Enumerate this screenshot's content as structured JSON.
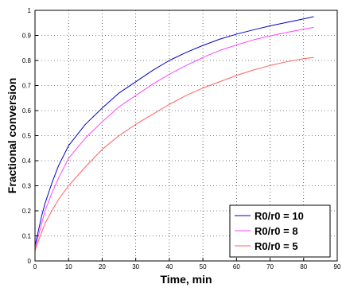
{
  "chart_data": {
    "type": "line",
    "title": "",
    "xlabel": "Time, min",
    "ylabel": "Fractional conversion",
    "xlim": [
      0,
      90
    ],
    "ylim": [
      0,
      1
    ],
    "xticks": [
      "0",
      "10",
      "20",
      "30",
      "40",
      "50",
      "60",
      "70",
      "80",
      "90"
    ],
    "yticks": [
      "0",
      "0.1",
      "0.2",
      "0.3",
      "0.4",
      "0.5",
      "0.6",
      "0.7",
      "0.8",
      "0.9",
      "1"
    ],
    "grid": true,
    "legend_position": "bottom-right",
    "x": [
      0,
      1,
      2,
      3,
      5,
      7,
      10,
      15,
      20,
      25,
      30,
      35,
      40,
      45,
      50,
      55,
      60,
      65,
      70,
      75,
      80,
      83
    ],
    "series": [
      {
        "name": "R0/r0 = 10",
        "color": "#0000cc",
        "values": [
          0.06,
          0.12,
          0.18,
          0.23,
          0.31,
          0.38,
          0.46,
          0.545,
          0.61,
          0.67,
          0.715,
          0.76,
          0.8,
          0.832,
          0.86,
          0.885,
          0.905,
          0.922,
          0.938,
          0.952,
          0.966,
          0.975
        ]
      },
      {
        "name": "R0/r0 = 8",
        "color": "#ff44ff",
        "values": [
          0.05,
          0.1,
          0.15,
          0.2,
          0.27,
          0.33,
          0.41,
          0.49,
          0.555,
          0.615,
          0.66,
          0.705,
          0.745,
          0.78,
          0.812,
          0.84,
          0.862,
          0.882,
          0.898,
          0.912,
          0.925,
          0.932
        ]
      },
      {
        "name": "R0/r0 = 5",
        "color": "#ff6060",
        "values": [
          0.04,
          0.08,
          0.115,
          0.15,
          0.2,
          0.245,
          0.3,
          0.375,
          0.445,
          0.5,
          0.545,
          0.585,
          0.625,
          0.66,
          0.69,
          0.715,
          0.74,
          0.762,
          0.78,
          0.795,
          0.807,
          0.812
        ]
      }
    ]
  }
}
